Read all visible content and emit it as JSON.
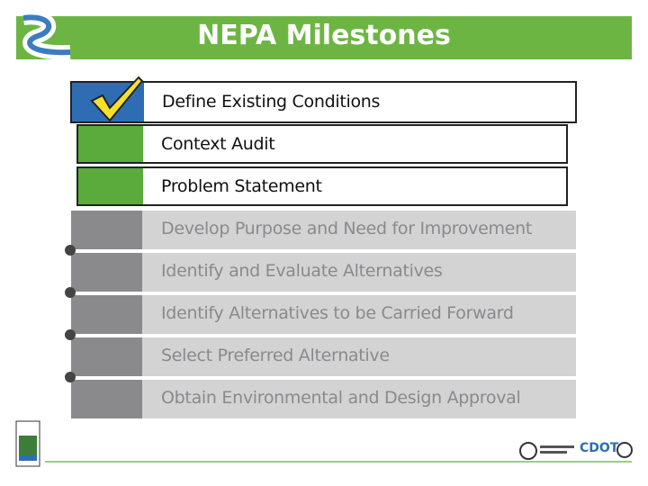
{
  "header": {
    "title": "NEPA Milestones"
  },
  "steps": [
    "Define Existing Conditions",
    "Context Audit",
    "Problem Statement",
    "Develop Purpose and Need for Improvement",
    "Identify and Evaluate Alternatives",
    "Identify Alternatives to be Carried Forward",
    "Select Preferred Alternative",
    "Obtain Environmental and Design Approval"
  ],
  "footer": {
    "logo": "CDOT"
  }
}
